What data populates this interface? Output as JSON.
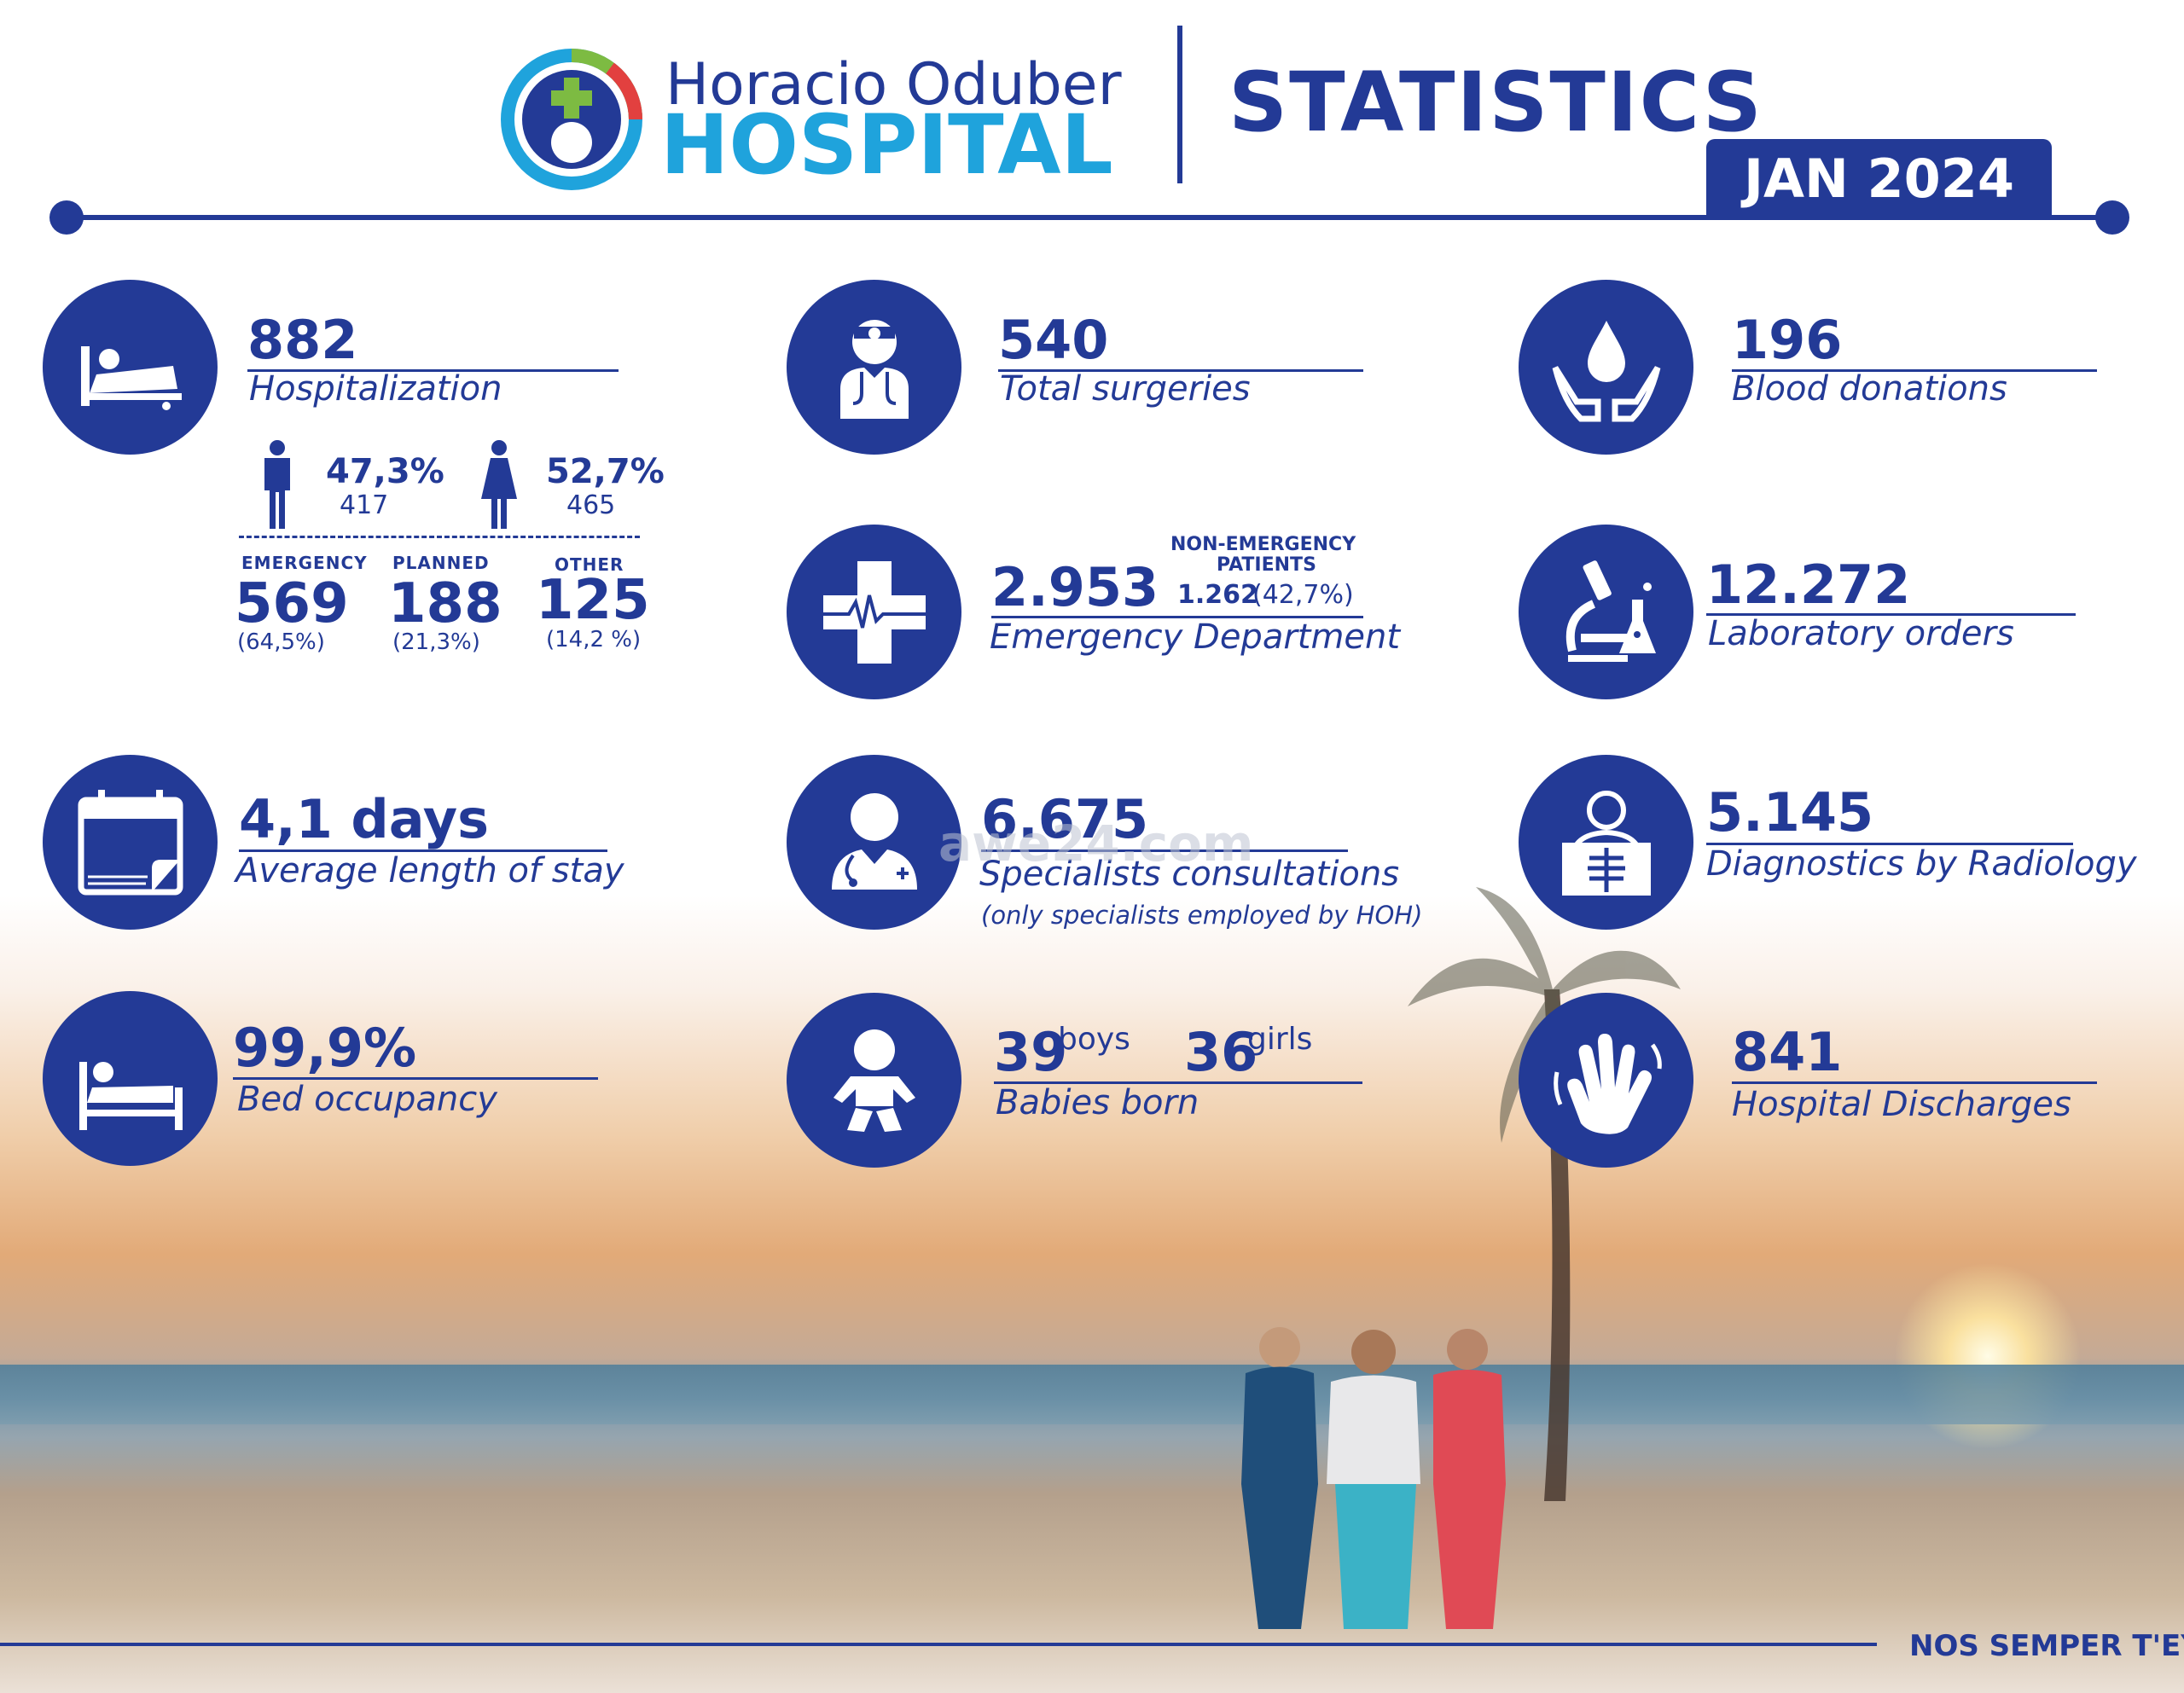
{
  "header": {
    "logo_line1": "Horacio Oduber",
    "logo_line2": "HOSPITAL",
    "title": "STATISTICS",
    "period": "JAN 2024"
  },
  "stats": {
    "hospitalization": {
      "value": "882",
      "label": "Hospitalization",
      "male_pct": "47,3%",
      "male_count": "417",
      "female_pct": "52,7%",
      "female_count": "465",
      "emergency_label": "EMERGENCY",
      "emergency_value": "569",
      "emergency_pct": "(64,5%)",
      "planned_label": "PLANNED",
      "planned_value": "188",
      "planned_pct": "(21,3%)",
      "other_label": "OTHER",
      "other_value": "125",
      "other_pct": "(14,2 %)"
    },
    "surgeries": {
      "value": "540",
      "label": "Total surgeries"
    },
    "blood": {
      "value": "196",
      "label": "Blood donations"
    },
    "emergency_dept": {
      "value": "2.953",
      "label": "Emergency Department",
      "non_emergency_label_1": "NON-EMERGENCY",
      "non_emergency_label_2": "PATIENTS",
      "non_emergency_value": "1.262",
      "non_emergency_pct": "(42,7%)"
    },
    "lab": {
      "value": "12.272",
      "label": "Laboratory orders"
    },
    "stay": {
      "value": "4,1 days",
      "label": "Average length of  stay"
    },
    "specialists": {
      "value": "6.675",
      "label": "Specialists consultations",
      "note": "(only specialists employed by HOH)"
    },
    "radiology": {
      "value": "5.145",
      "label": "Diagnostics by Radiology"
    },
    "occupancy": {
      "value": "99,9%",
      "label": "Bed occupancy"
    },
    "babies": {
      "boys_value": "39",
      "boys_label": "boys",
      "girls_value": "36",
      "girls_label": "girls",
      "label": "Babies born"
    },
    "discharges": {
      "value": "841",
      "label": "Hospital Discharges"
    }
  },
  "footer": {
    "slogan": "NOS SEMPER T'EY!"
  },
  "watermark": "awe24.com",
  "icons": {
    "hospitalization": "patient-bed-icon",
    "surgeries": "doctor-icon",
    "blood": "blood-drop-hands-icon",
    "emergency": "medical-cross-icon",
    "lab": "microscope-icon",
    "stay": "calendar-icon",
    "specialists": "specialist-icon",
    "radiology": "xray-icon",
    "occupancy": "bed-icon",
    "babies": "baby-icon",
    "discharges": "waving-hand-icon"
  },
  "colors": {
    "brand": "#233a96",
    "accent": "#1fa3dc"
  }
}
